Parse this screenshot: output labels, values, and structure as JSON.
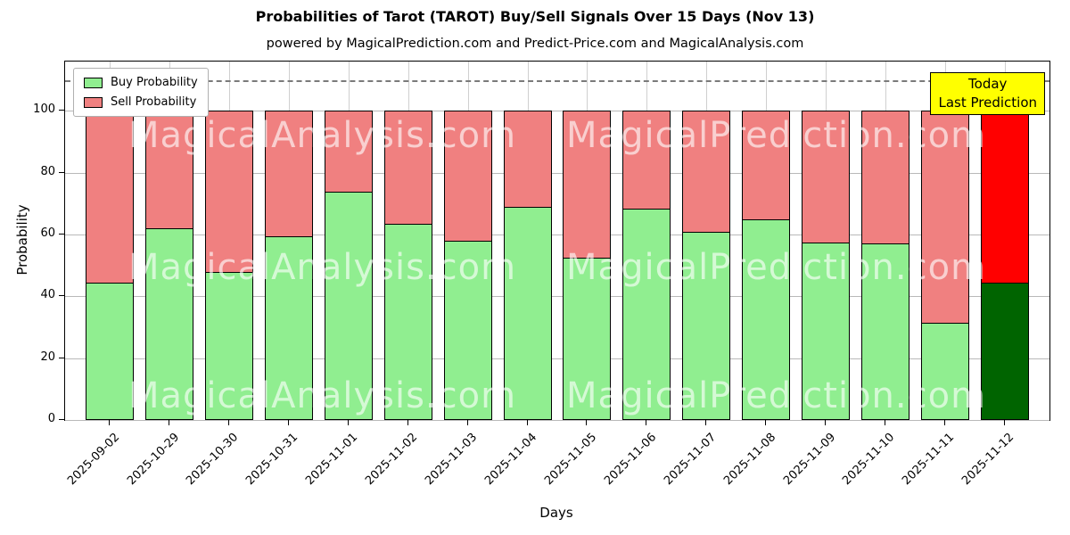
{
  "chart_data": {
    "type": "bar",
    "stacked": true,
    "title": "Probabilities of Tarot (TAROT) Buy/Sell Signals Over 15 Days (Nov 13)",
    "subtitle": "powered by MagicalPrediction.com and Predict-Price.com and MagicalAnalysis.com",
    "xlabel": "Days",
    "ylabel": "Probability",
    "ylim": [
      0,
      116
    ],
    "yticks": [
      0,
      20,
      40,
      60,
      80,
      100
    ],
    "dashed_line_y": 110,
    "grid": true,
    "legend_position": "upper left",
    "categories": [
      "2025-09-02",
      "2025-10-29",
      "2025-10-30",
      "2025-10-31",
      "2025-11-01",
      "2025-11-02",
      "2025-11-03",
      "2025-11-04",
      "2025-11-05",
      "2025-11-06",
      "2025-11-07",
      "2025-11-08",
      "2025-11-09",
      "2025-11-10",
      "2025-11-11",
      "2025-11-12"
    ],
    "series": [
      {
        "name": "Buy Probability",
        "color": "#90EE90",
        "values": [
          44.5,
          62,
          48,
          59.5,
          74,
          63.5,
          58,
          69,
          52.5,
          68.5,
          61,
          65,
          57.5,
          57,
          31.5,
          44.5
        ]
      },
      {
        "name": "Sell Probability",
        "color": "#F08080",
        "values": [
          55.5,
          38,
          52,
          40.5,
          26,
          36.5,
          42,
          31,
          47.5,
          31.5,
          39,
          35,
          42.5,
          43,
          68.5,
          55.5
        ]
      }
    ],
    "today_bar": {
      "index": 15,
      "buy_color": "#006400",
      "sell_color": "#FF0000"
    },
    "annotation": {
      "line1": "Today",
      "line2": "Last Prediction",
      "bg_color": "#FFFF00"
    },
    "watermarks": [
      "MagicalAnalysis.com",
      "MagicalPrediction.com"
    ],
    "bar_edge_color": "#000000"
  }
}
